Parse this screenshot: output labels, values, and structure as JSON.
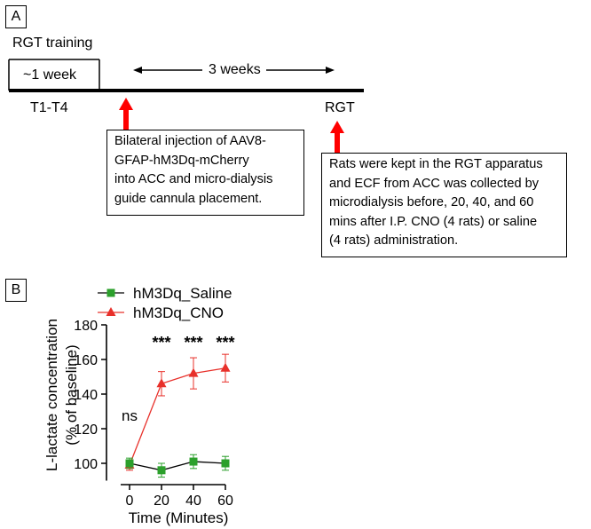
{
  "panel_a": {
    "label": "A",
    "rgt_training": "RGT training",
    "one_week": "~1 week",
    "three_weeks": "3 weeks",
    "t1_t4": "T1-T4",
    "rgt": "RGT",
    "box1_lines": [
      "Bilateral injection of AAV8-",
      "GFAP-hM3Dq-mCherry",
      "into ACC and micro-dialysis",
      "guide cannula  placement."
    ],
    "box2_lines": [
      "Rats were kept in the RGT apparatus",
      "and ECF from ACC was collected by",
      "microdialysis before, 20, 40, and 60",
      "mins after I.P. CNO (4 rats) or saline",
      "(4 rats) administration."
    ],
    "arrow_color": "#ff0000"
  },
  "panel_b": {
    "label": "B",
    "chart_data": {
      "type": "line",
      "x": [
        0,
        20,
        40,
        60
      ],
      "xticks": [
        "0",
        "20",
        "40",
        "60"
      ],
      "ylim": [
        90,
        180
      ],
      "yticks": [
        "100",
        "120",
        "140",
        "160",
        "180"
      ],
      "xlabel": "Time (Minutes)",
      "ylabel": "L-lactate concentration",
      "ylabel2": "(% of baseline)",
      "legend_position": "top-left",
      "series": [
        {
          "name": "hM3Dq_Saline",
          "color": "#2ca02c",
          "marker": "square",
          "values": [
            100,
            96,
            101,
            100
          ],
          "errors": [
            3,
            4,
            4,
            4
          ]
        },
        {
          "name": "hM3Dq_CNO",
          "color": "#e8302a",
          "marker": "triangle",
          "values": [
            99,
            146,
            152,
            155
          ],
          "errors": [
            3,
            7,
            9,
            8
          ]
        }
      ],
      "annotations": [
        {
          "x": 0,
          "text": "ns"
        },
        {
          "x": 20,
          "text": "***"
        },
        {
          "x": 40,
          "text": "***"
        },
        {
          "x": 60,
          "text": "***"
        }
      ]
    }
  }
}
